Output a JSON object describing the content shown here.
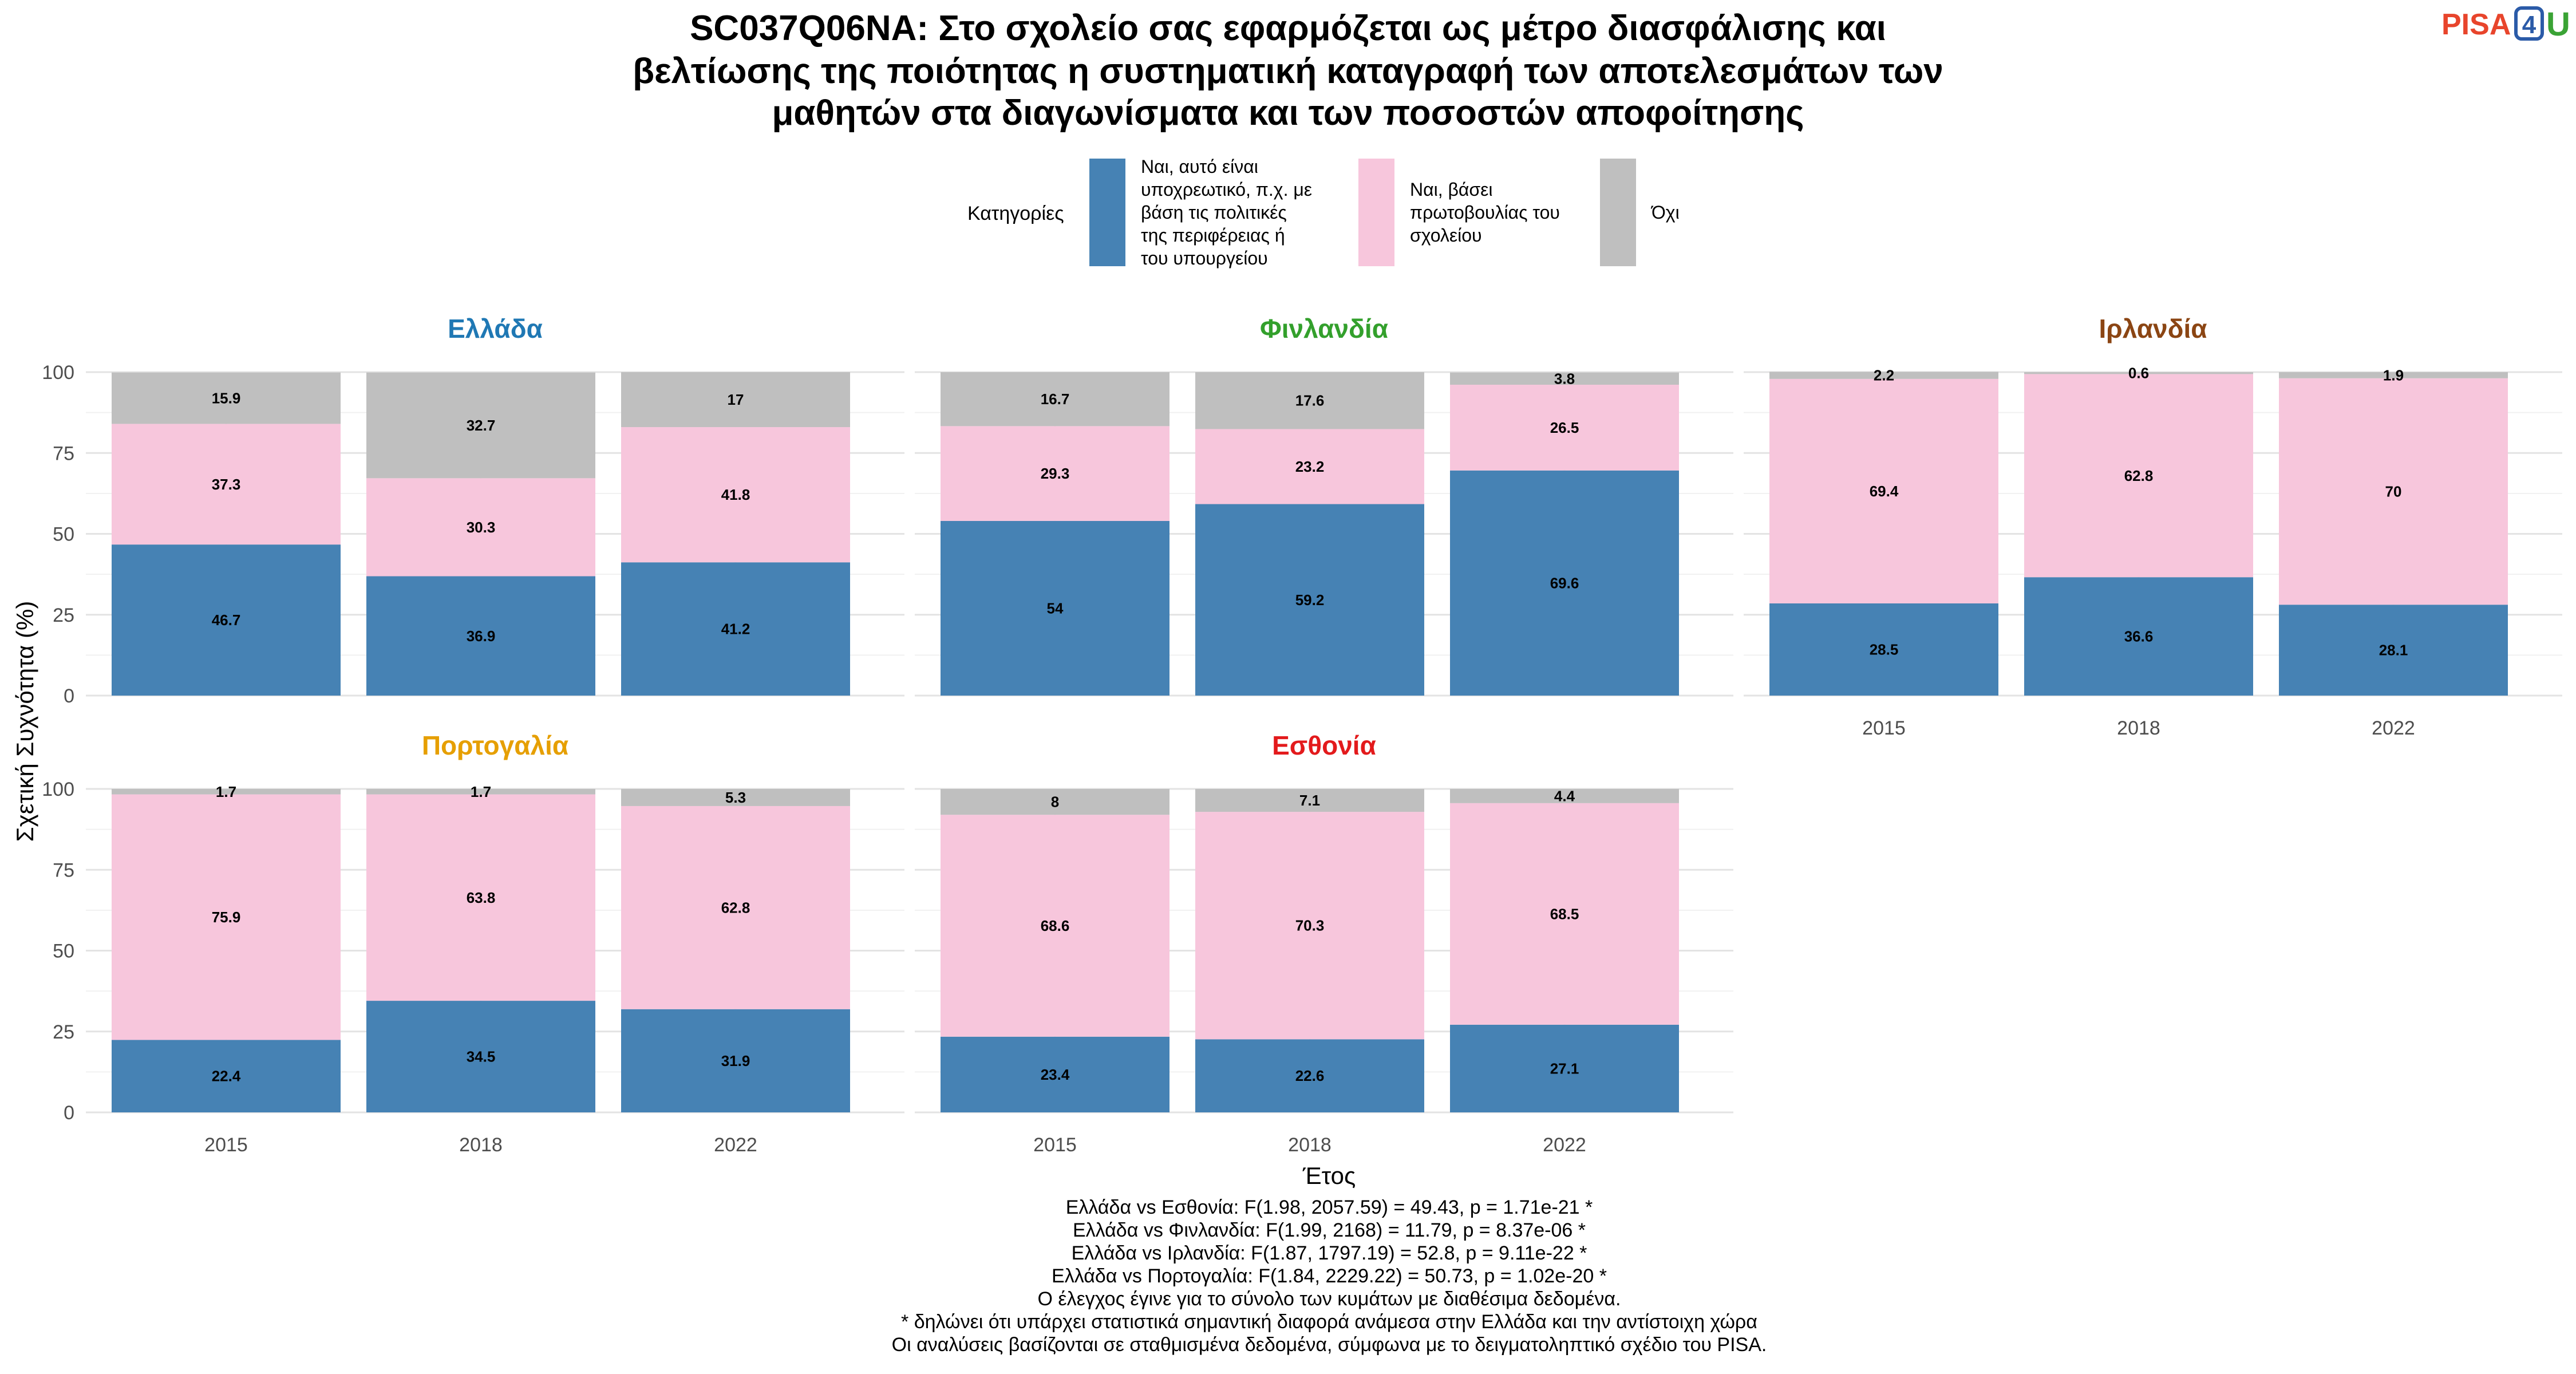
{
  "title_lines": [
    "SC037Q06NA: Στο σχολείο σας εφαρμόζεται ως μέτρο διασφάλισης και",
    "βελτίωσης της ποιότητας η συστηματική καταγραφή των αποτελεσμάτων των",
    "μαθητών στα διαγωνίσματα και των ποσοστών αποφοίτησης"
  ],
  "logo": {
    "pisa": "PISA",
    "four": "4",
    "u": "U"
  },
  "legend": {
    "title": "Κατηγορίες",
    "items": [
      {
        "lines": [
          "Ναι, αυτό είναι",
          "υποχρεωτικό, π.χ. με",
          "βάση τις πολιτικές",
          "της περιφέρειας ή",
          "του υπουργείου"
        ],
        "color": "#4682b4"
      },
      {
        "lines": [
          "Ναι, βάσει",
          "πρωτοβουλίας του",
          "σχολείου"
        ],
        "color": "#f7c6dc"
      },
      {
        "lines": [
          "Όχι"
        ],
        "color": "#bfbfbf"
      }
    ]
  },
  "axis": {
    "ylabel": "Σχετική Συχνότητα (%)",
    "xlabel": "Έτος"
  },
  "notes": [
    "Ελλάδα vs Εσθονία: F(1.98, 2057.59) = 49.43, p = 1.71e-21 *",
    "Ελλάδα vs Φινλανδία: F(1.99, 2168) = 11.79, p = 8.37e-06 *",
    "Ελλάδα vs Ιρλανδία: F(1.87, 1797.19) = 52.8, p = 9.11e-22 *",
    "Ελλάδα vs Πορτογαλία: F(1.84, 2229.22) = 50.73, p = 1.02e-20 *",
    "Ο έλεγχος έγινε για το σύνολο των κυμάτων με διαθέσιμα δεδομένα.",
    "* δηλώνει ότι υπάρχει στατιστικά σημαντική διαφορά ανάμεσα στην Ελλάδα και την αντίστοιχη χώρα",
    "Οι αναλύσεις βασίζονται σε σταθμισμένα δεδομένα, σύμφωνα με το δειγματοληπτικό σχέδιο του PISA."
  ],
  "chart_data": {
    "type": "bar",
    "stacked": true,
    "categories": [
      "2015",
      "2018",
      "2022"
    ],
    "ylim": [
      0,
      100
    ],
    "yticks": [
      0,
      25,
      50,
      75,
      100
    ],
    "series_colors": [
      "#4682b4",
      "#f7c6dc",
      "#bfbfbf"
    ],
    "panels": [
      {
        "name": "Ελλάδα",
        "color": "#1f78b4",
        "x_tick_labels": false,
        "values": [
          [
            46.7,
            37.3,
            15.9
          ],
          [
            36.9,
            30.3,
            32.7
          ],
          [
            41.2,
            41.8,
            17
          ]
        ]
      },
      {
        "name": "Φινλανδία",
        "color": "#33a02c",
        "x_tick_labels": false,
        "values": [
          [
            54,
            29.3,
            16.7
          ],
          [
            59.2,
            23.2,
            17.6
          ],
          [
            69.6,
            26.5,
            3.8
          ]
        ]
      },
      {
        "name": "Ιρλανδία",
        "color": "#8b4513",
        "x_tick_labels": true,
        "values": [
          [
            28.5,
            69.4,
            2.2
          ],
          [
            36.6,
            62.8,
            0.6
          ],
          [
            28.1,
            70,
            1.9
          ]
        ]
      },
      {
        "name": "Πορτογαλία",
        "color": "#e69f00",
        "x_tick_labels": true,
        "values": [
          [
            22.4,
            75.9,
            1.7
          ],
          [
            34.5,
            63.8,
            1.7
          ],
          [
            31.9,
            62.8,
            5.3
          ]
        ]
      },
      {
        "name": "Εσθονία",
        "color": "#e31a1c",
        "x_tick_labels": true,
        "values": [
          [
            23.4,
            68.6,
            8
          ],
          [
            22.6,
            70.3,
            7.1
          ],
          [
            27.1,
            68.5,
            4.4
          ]
        ]
      }
    ]
  }
}
